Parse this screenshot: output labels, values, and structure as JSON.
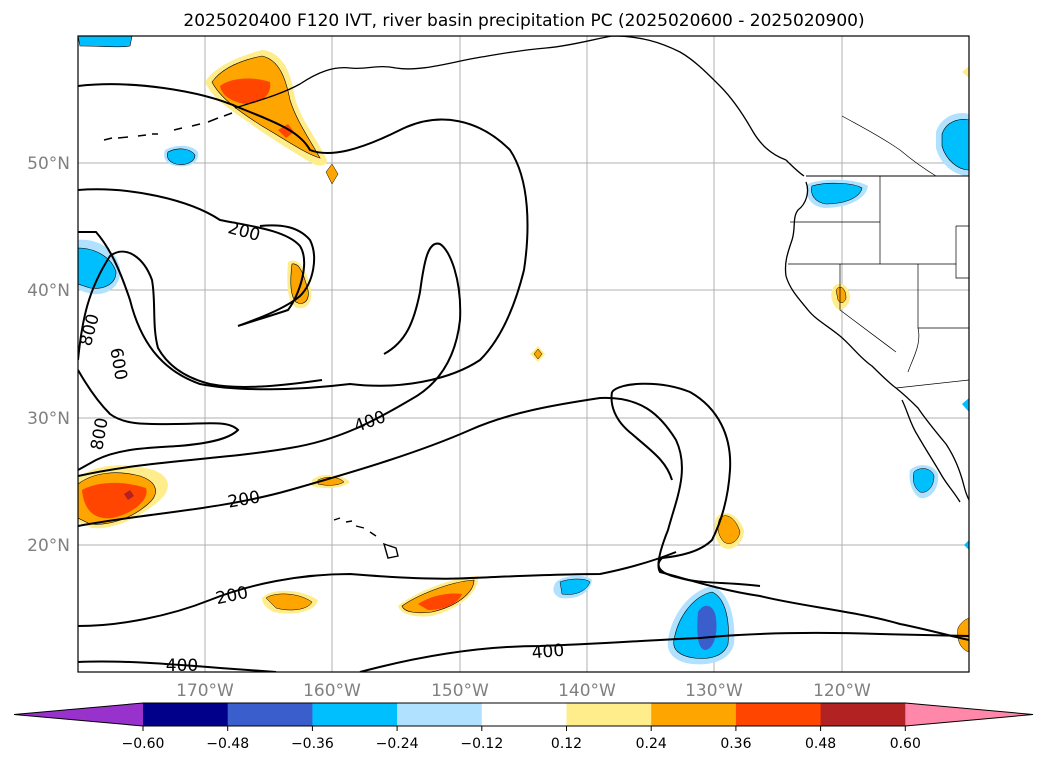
{
  "title": "2025020400 F120 IVT, river basin precipitation PC (2025020600 - 2025020900)",
  "map": {
    "lon_min": -180,
    "lon_max": -110,
    "lat_min": 10,
    "lat_max": 60,
    "grid": true,
    "lat_labels": [
      "20°N",
      "30°N",
      "40°N",
      "50°N"
    ],
    "lon_labels": [
      "170°W",
      "160°W",
      "150°W",
      "140°W",
      "130°W",
      "120°W"
    ],
    "contour_labels": [
      "200",
      "800",
      "600",
      "800",
      "400",
      "200",
      "200",
      "400",
      "400"
    ]
  },
  "colorbar": {
    "tick_labels": [
      "−0.60",
      "−0.48",
      "−0.36",
      "−0.24",
      "−0.12",
      "0.12",
      "0.24",
      "0.36",
      "0.48",
      "0.60"
    ],
    "colors": [
      "#9932cc",
      "#00008b",
      "#3a5fcd",
      "#00bfff",
      "#b0e2ff",
      "#ffffff",
      "#ffec8b",
      "#ffa500",
      "#ff4500",
      "#b22222",
      "#ff88aa"
    ]
  }
}
